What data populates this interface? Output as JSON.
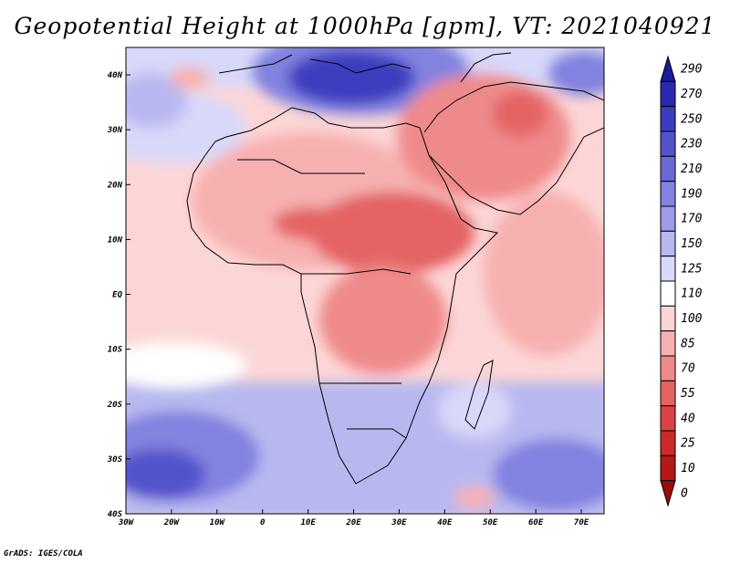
{
  "title": "Geopotential Height at 1000hPa [gpm], VT: 2021040921",
  "footer": "GrADS: IGES/COLA",
  "map": {
    "lon_range": [
      -30,
      75
    ],
    "lat_range": [
      -40,
      45
    ],
    "lon_ticks": [
      "30W",
      "20W",
      "10W",
      "0",
      "10E",
      "20E",
      "30E",
      "40E",
      "50E",
      "60E",
      "70E"
    ],
    "lat_ticks": [
      "40N",
      "30N",
      "20N",
      "10N",
      "EQ",
      "10S",
      "20S",
      "30S",
      "40S"
    ],
    "field": "Geopotential Height at 1000hPa",
    "units": "gpm"
  },
  "colorbar": {
    "levels": [
      "290",
      "270",
      "250",
      "230",
      "210",
      "190",
      "170",
      "150",
      "125",
      "110",
      "100",
      "85",
      "70",
      "55",
      "40",
      "25",
      "10",
      "0"
    ],
    "colors": [
      "#1a1a9c",
      "#2929b0",
      "#3c3cc0",
      "#5252cc",
      "#6a6ad6",
      "#8282e0",
      "#9c9ce8",
      "#b8b8f0",
      "#d8d8fa",
      "#ffffff",
      "#fcd6d6",
      "#f7b0b0",
      "#ef8a8a",
      "#e46464",
      "#d94444",
      "#cc2a2a",
      "#b41818",
      "#9c0c0c"
    ]
  }
}
